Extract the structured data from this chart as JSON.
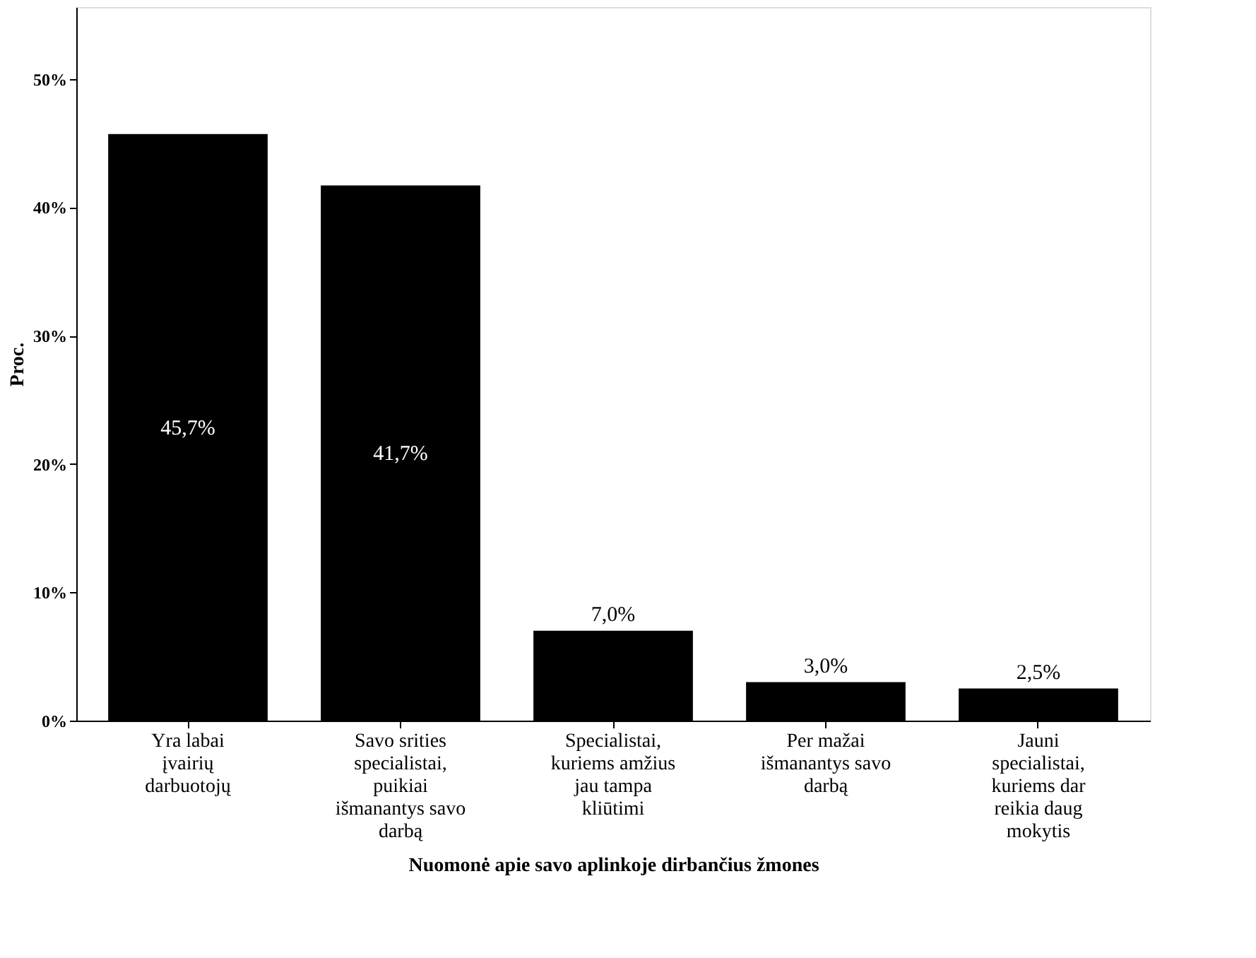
{
  "chart_data": {
    "type": "bar",
    "xlabel": "Nuomonė apie savo aplinkoje dirbančius žmones",
    "ylabel": "Proc.",
    "categories": [
      "Yra labai įvairių darbuotojų",
      "Savo srities specialistai, puikiai išmanantys savo darbą",
      "Specialistai, kuriems amžius jau tampa kliūtimi",
      "Per mažai išmanantys savo darbą",
      "Jauni specialistai, kuriems dar reikia daug mokytis"
    ],
    "values": [
      45.7,
      41.7,
      7.0,
      3.0,
      2.5
    ],
    "value_labels": [
      "45,7%",
      "41,7%",
      "7,0%",
      "3,0%",
      "2,5%"
    ],
    "color": "#000000",
    "ylim": [
      0,
      55.6
    ],
    "yticks": [
      {
        "value": 0,
        "label": "0%"
      },
      {
        "value": 10,
        "label": "10%"
      },
      {
        "value": 20,
        "label": "20%"
      },
      {
        "value": 30,
        "label": "30%"
      },
      {
        "value": 40,
        "label": "40%"
      },
      {
        "value": 50,
        "label": "50%"
      }
    ],
    "grid": false
  }
}
